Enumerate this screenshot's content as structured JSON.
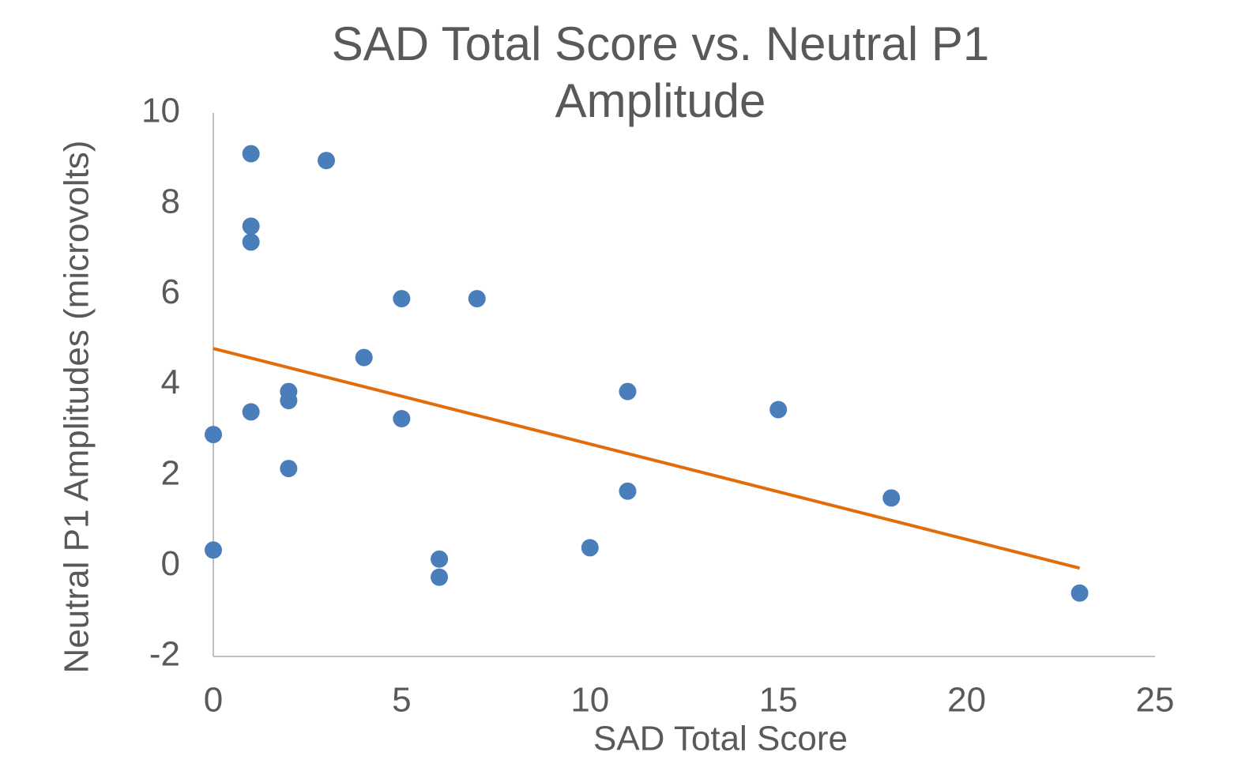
{
  "chart_data": {
    "type": "scatter",
    "title": "SAD Total Score vs. Neutral P1 Amplitude",
    "x_label": "SAD Total Score",
    "y_label": "Neutral P1 Amplitudes (microvolts)",
    "series": [
      {
        "name": "Neutral P1",
        "color": "#4a7ebb",
        "x": [
          0,
          0,
          1,
          1,
          1,
          1,
          2,
          2,
          2,
          3,
          4,
          5,
          5,
          6,
          6,
          7,
          10,
          11,
          11,
          15,
          18,
          23
        ],
        "values": [
          2.9,
          0.35,
          9.1,
          7.5,
          7.15,
          3.4,
          3.85,
          3.65,
          2.15,
          8.95,
          4.6,
          5.9,
          3.25,
          0.15,
          -0.25,
          5.9,
          0.4,
          3.85,
          1.65,
          3.45,
          1.5,
          -0.6
        ]
      }
    ],
    "trendline": {
      "color": "#e36c0a",
      "x": [
        0,
        23
      ],
      "values": [
        4.8,
        -0.05
      ]
    },
    "xlim": [
      0,
      25
    ],
    "xticks": [
      0,
      5,
      10,
      15,
      20,
      25
    ],
    "ylim": [
      -2,
      10
    ],
    "yticks": [
      -2,
      0,
      2,
      4,
      6,
      8,
      10
    ],
    "grid": false
  }
}
